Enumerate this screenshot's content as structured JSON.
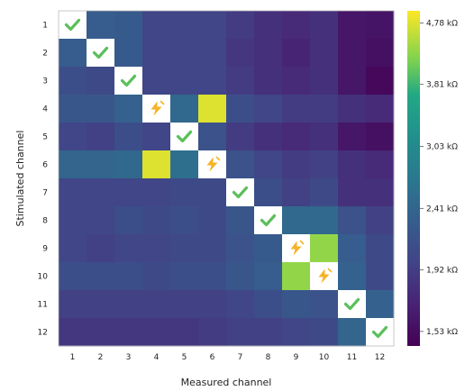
{
  "chart_data": {
    "type": "heatmap",
    "xlabel": "Measured channel",
    "ylabel": "Stimulated channel",
    "x_ticks": [
      "1",
      "2",
      "3",
      "4",
      "5",
      "6",
      "7",
      "8",
      "9",
      "10",
      "11",
      "12"
    ],
    "y_ticks": [
      "1",
      "2",
      "3",
      "4",
      "5",
      "6",
      "7",
      "8",
      "9",
      "10",
      "11",
      "12"
    ],
    "colorscale": "viridis (log)",
    "colorbar": {
      "ticks": [
        "4,78 kΩ",
        "3,81 kΩ",
        "3,03 kΩ",
        "2,41 kΩ",
        "1,92 kΩ",
        "1,53 kΩ"
      ],
      "tick_values": [
        4.78,
        3.81,
        3.03,
        2.41,
        1.92,
        1.53
      ],
      "range": [
        1.45,
        5.0
      ]
    },
    "values_kohm": [
      [
        null,
        2.3,
        2.25,
        2.0,
        2.0,
        2.0,
        1.9,
        1.8,
        1.75,
        1.8,
        1.6,
        1.58
      ],
      [
        2.3,
        null,
        2.25,
        2.0,
        2.0,
        2.0,
        1.85,
        1.8,
        1.7,
        1.8,
        1.6,
        1.55
      ],
      [
        2.1,
        2.05,
        null,
        2.0,
        2.0,
        2.0,
        1.9,
        1.8,
        1.75,
        1.8,
        1.6,
        1.5
      ],
      [
        2.2,
        2.2,
        2.35,
        null,
        2.45,
        4.78,
        2.1,
        2.0,
        1.9,
        1.9,
        1.8,
        1.75
      ],
      [
        2.0,
        1.95,
        2.1,
        2.0,
        null,
        2.15,
        1.9,
        1.8,
        1.75,
        1.8,
        1.6,
        1.55
      ],
      [
        2.4,
        2.4,
        2.45,
        4.78,
        2.55,
        null,
        2.15,
        2.0,
        1.9,
        1.95,
        1.8,
        1.75
      ],
      [
        2.0,
        2.0,
        2.0,
        2.0,
        2.05,
        2.05,
        null,
        2.1,
        1.95,
        2.05,
        1.8,
        1.8
      ],
      [
        2.0,
        2.0,
        2.1,
        2.05,
        2.1,
        2.05,
        2.2,
        null,
        2.45,
        2.45,
        2.15,
        1.95
      ],
      [
        2.0,
        1.95,
        2.0,
        2.0,
        2.05,
        2.05,
        2.15,
        2.25,
        null,
        4.3,
        2.3,
        2.05
      ],
      [
        2.1,
        2.1,
        2.1,
        2.05,
        2.1,
        2.1,
        2.2,
        2.3,
        4.3,
        null,
        2.35,
        2.05
      ],
      [
        1.95,
        1.95,
        1.95,
        1.95,
        1.95,
        1.95,
        2.0,
        2.1,
        2.2,
        2.15,
        null,
        2.35
      ],
      [
        1.85,
        1.85,
        1.85,
        1.85,
        1.85,
        1.9,
        1.95,
        1.95,
        2.0,
        2.05,
        2.4,
        null
      ]
    ],
    "markers": [
      {
        "row": 1,
        "col": 1,
        "type": "check"
      },
      {
        "row": 2,
        "col": 2,
        "type": "check"
      },
      {
        "row": 3,
        "col": 3,
        "type": "check"
      },
      {
        "row": 4,
        "col": 4,
        "type": "lightning"
      },
      {
        "row": 5,
        "col": 5,
        "type": "check"
      },
      {
        "row": 6,
        "col": 6,
        "type": "lightning"
      },
      {
        "row": 7,
        "col": 7,
        "type": "check"
      },
      {
        "row": 8,
        "col": 8,
        "type": "check"
      },
      {
        "row": 9,
        "col": 9,
        "type": "lightning"
      },
      {
        "row": 10,
        "col": 10,
        "type": "lightning"
      },
      {
        "row": 11,
        "col": 11,
        "type": "check"
      },
      {
        "row": 12,
        "col": 12,
        "type": "check"
      }
    ]
  },
  "colors": {
    "check": "#5bbf5b",
    "lightning": "#f5b324",
    "diag_bg": "#ffffff"
  }
}
